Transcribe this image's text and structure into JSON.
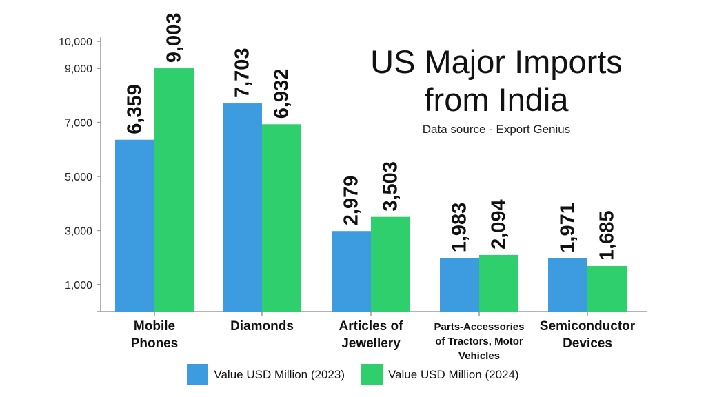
{
  "chart_data": {
    "type": "bar",
    "title_lines": [
      "US Major Imports",
      "from India"
    ],
    "subtitle": "Data source - Export Genius",
    "categories": [
      [
        "Mobile",
        "Phones"
      ],
      [
        "Diamonds"
      ],
      [
        "Articles of",
        "Jewellery"
      ],
      [
        "Parts-Accessories",
        "of Tractors, Motor",
        "Vehicles"
      ],
      [
        "Semiconductor",
        "Devices"
      ]
    ],
    "series": [
      {
        "name": "Value USD Million (2023)",
        "color": "#3d9be0",
        "values": [
          6359,
          7703,
          2979,
          1983,
          1971
        ],
        "labels": [
          "6,359",
          "7,703",
          "2,979",
          "1,983",
          "1,971"
        ]
      },
      {
        "name": "Value USD Million (2024)",
        "color": "#2fcf6e",
        "values": [
          9003,
          6932,
          3503,
          2094,
          1685
        ],
        "labels": [
          "9,003",
          "6,932",
          "3,503",
          "2,094",
          "1,685"
        ]
      }
    ],
    "y_ticks": [
      1000,
      3000,
      5000,
      7000,
      9000,
      10000
    ],
    "y_tick_labels": [
      "1,000",
      "3,000",
      "5,000",
      "7,000",
      "9,000",
      "10,000"
    ],
    "ylim": [
      0,
      10000
    ],
    "grid": false,
    "legend_position": "bottom"
  }
}
